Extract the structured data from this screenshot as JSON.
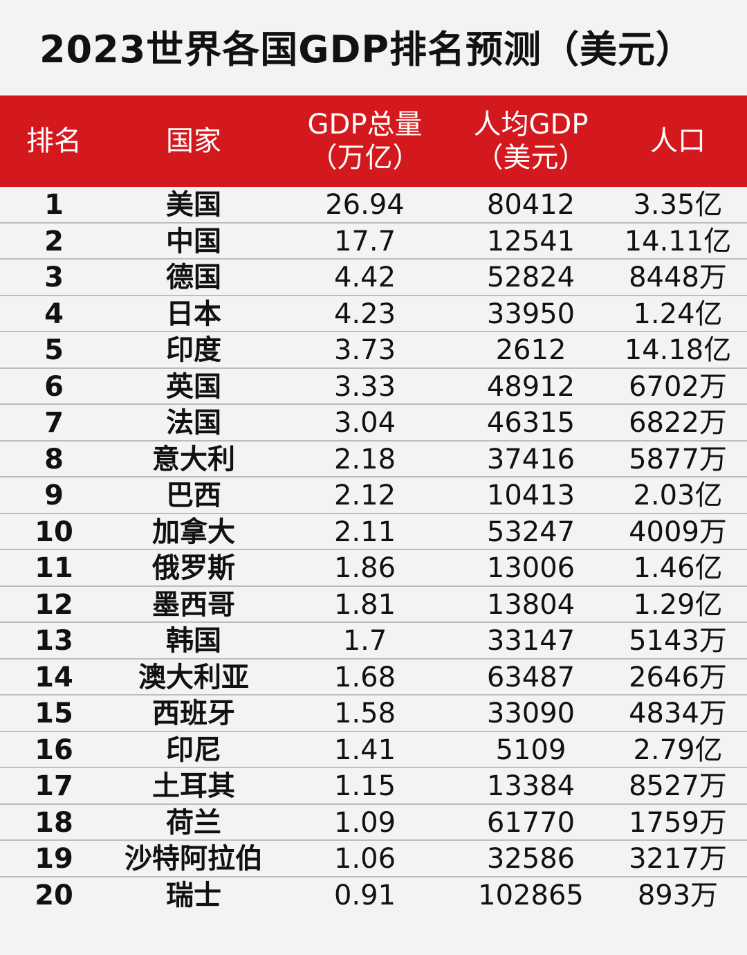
{
  "title": "2023世界各国GDP排名预测（美元）",
  "header": {
    "rank": "排名",
    "country": "国家",
    "gdp_line1": "GDP总量",
    "gdp_line2": "（万亿）",
    "per_capita_line1": "人均GDP",
    "per_capita_line2": "（美元）",
    "population": "人口"
  },
  "rows": [
    {
      "rank": "1",
      "country": "美国",
      "gdp": "26.94",
      "per_capita": "80412",
      "population": "3.35亿"
    },
    {
      "rank": "2",
      "country": "中国",
      "gdp": "17.7",
      "per_capita": "12541",
      "population": "14.11亿"
    },
    {
      "rank": "3",
      "country": "德国",
      "gdp": "4.42",
      "per_capita": "52824",
      "population": "8448万"
    },
    {
      "rank": "4",
      "country": "日本",
      "gdp": "4.23",
      "per_capita": "33950",
      "population": "1.24亿"
    },
    {
      "rank": "5",
      "country": "印度",
      "gdp": "3.73",
      "per_capita": "2612",
      "population": "14.18亿"
    },
    {
      "rank": "6",
      "country": "英国",
      "gdp": "3.33",
      "per_capita": "48912",
      "population": "6702万"
    },
    {
      "rank": "7",
      "country": "法国",
      "gdp": "3.04",
      "per_capita": "46315",
      "population": "6822万"
    },
    {
      "rank": "8",
      "country": "意大利",
      "gdp": "2.18",
      "per_capita": "37416",
      "population": "5877万"
    },
    {
      "rank": "9",
      "country": "巴西",
      "gdp": "2.12",
      "per_capita": "10413",
      "population": "2.03亿"
    },
    {
      "rank": "10",
      "country": "加拿大",
      "gdp": "2.11",
      "per_capita": "53247",
      "population": "4009万"
    },
    {
      "rank": "11",
      "country": "俄罗斯",
      "gdp": "1.86",
      "per_capita": "13006",
      "population": "1.46亿"
    },
    {
      "rank": "12",
      "country": "墨西哥",
      "gdp": "1.81",
      "per_capita": "13804",
      "population": "1.29亿"
    },
    {
      "rank": "13",
      "country": "韩国",
      "gdp": "1.7",
      "per_capita": "33147",
      "population": "5143万"
    },
    {
      "rank": "14",
      "country": "澳大利亚",
      "gdp": "1.68",
      "per_capita": "63487",
      "population": "2646万"
    },
    {
      "rank": "15",
      "country": "西班牙",
      "gdp": "1.58",
      "per_capita": "33090",
      "population": "4834万"
    },
    {
      "rank": "16",
      "country": "印尼",
      "gdp": "1.41",
      "per_capita": "5109",
      "population": "2.79亿"
    },
    {
      "rank": "17",
      "country": "土耳其",
      "gdp": "1.15",
      "per_capita": "13384",
      "population": "8527万"
    },
    {
      "rank": "18",
      "country": "荷兰",
      "gdp": "1.09",
      "per_capita": "61770",
      "population": "1759万"
    },
    {
      "rank": "19",
      "country": "沙特阿拉伯",
      "gdp": "1.06",
      "per_capita": "32586",
      "population": "3217万"
    },
    {
      "rank": "20",
      "country": "瑞士",
      "gdp": "0.91",
      "per_capita": "102865",
      "population": "893万"
    }
  ],
  "colors": {
    "header_bg": "#d4191e",
    "header_text": "#ffffff",
    "page_bg": "#f3f3f3",
    "row_divider": "#bdbdbd"
  }
}
